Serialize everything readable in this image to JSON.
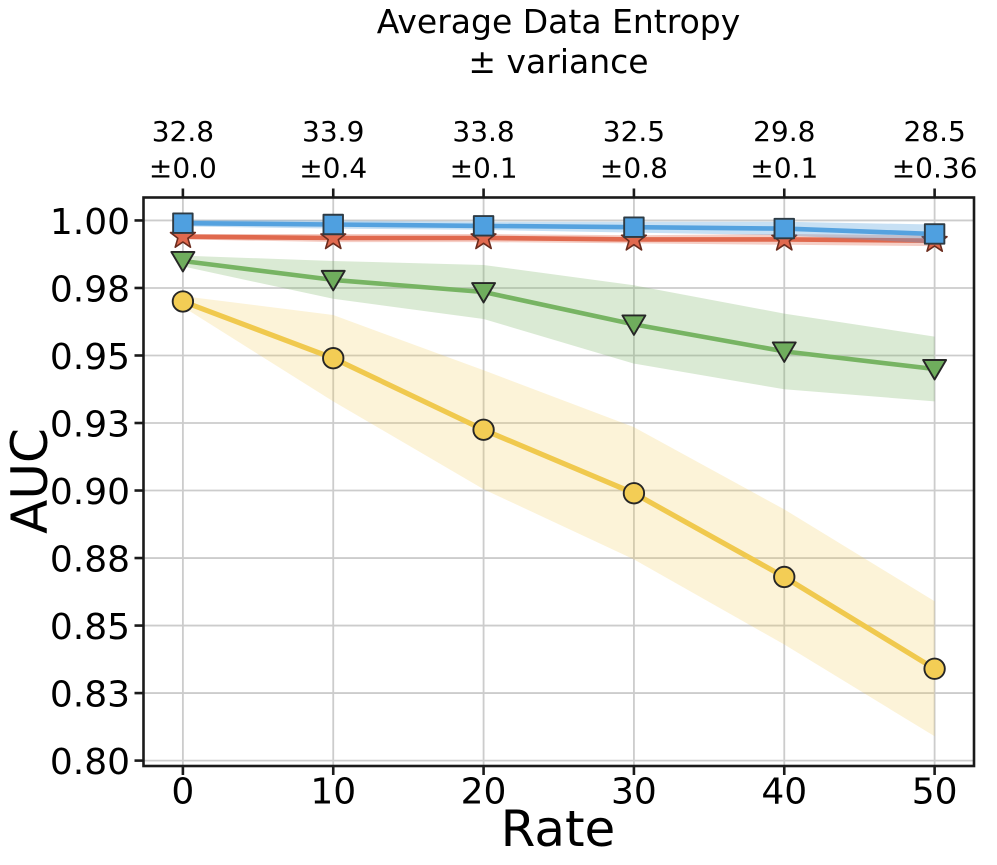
{
  "chart_data": {
    "type": "line",
    "title": "Average Data Entropy ± variance",
    "top_title_lines": [
      "Average Data Entropy",
      "± variance"
    ],
    "xlabel": "Rate",
    "ylabel": "AUC",
    "x": [
      0,
      10,
      20,
      30,
      40,
      50
    ],
    "x_tick_labels": [
      "0",
      "10",
      "20",
      "30",
      "40",
      "50"
    ],
    "y_ticks": [
      1.0,
      0.975,
      0.95,
      0.925,
      0.9,
      0.875,
      0.85,
      0.825,
      0.8
    ],
    "y_tick_labels": [
      "1.00",
      "0.98",
      "0.95",
      "0.93",
      "0.90",
      "0.88",
      "0.85",
      "0.83",
      "0.80"
    ],
    "xlim": [
      -2.62,
      52.62
    ],
    "ylim": [
      0.798,
      1.0085
    ],
    "grid": true,
    "grid_color": "#cccccc",
    "spine_color": "#1a1a1a",
    "legend": "none",
    "top_axis_ticks": [
      {
        "mean": "32.8",
        "variance": "±0.0"
      },
      {
        "mean": "33.9",
        "variance": "±0.4"
      },
      {
        "mean": "33.8",
        "variance": "±0.1"
      },
      {
        "mean": "32.5",
        "variance": "±0.8"
      },
      {
        "mean": "29.8",
        "variance": "±0.1"
      },
      {
        "mean": "28.5",
        "variance": "±0.36"
      }
    ],
    "series": [
      {
        "id": "yellow-circles",
        "marker": "circle",
        "line_color": "#F0C94E",
        "marker_color": "#F3CD55",
        "edge_color": "#262626",
        "band_color": "rgba(240,201,78,0.22)",
        "values": [
          0.97,
          0.949,
          0.9225,
          0.899,
          0.868,
          0.834
        ],
        "band": [
          0.002,
          0.016,
          0.022,
          0.0245,
          0.025,
          0.025
        ]
      },
      {
        "id": "green-triangles",
        "marker": "triangle-down",
        "line_color": "#77B463",
        "marker_color": "#6FAD5D",
        "edge_color": "#262626",
        "band_color": "rgba(122,180,100,0.28)",
        "values": [
          0.985,
          0.978,
          0.9735,
          0.9615,
          0.9515,
          0.945
        ],
        "band": [
          0.002,
          0.007,
          0.01,
          0.0145,
          0.014,
          0.012
        ]
      },
      {
        "id": "red-stars",
        "marker": "star",
        "line_color": "#E0694E",
        "marker_color": "#E0694E",
        "edge_color": "#6B2C1E",
        "band_color": "rgba(224,106,78,0.33)",
        "values": [
          0.994,
          0.9935,
          0.9935,
          0.993,
          0.993,
          0.9925
        ],
        "band": [
          0.001,
          0.0015,
          0.0015,
          0.0015,
          0.002,
          0.002
        ]
      },
      {
        "id": "blue-squares",
        "marker": "square",
        "line_color": "#55A2DF",
        "marker_color": "#4FA0E0",
        "edge_color": "#2E3B44",
        "band_color": "rgba(85,162,223,0.33)",
        "values": [
          0.999,
          0.9985,
          0.998,
          0.9975,
          0.997,
          0.995
        ],
        "band": [
          0.0012,
          0.0015,
          0.0015,
          0.002,
          0.0025,
          0.0035
        ]
      }
    ]
  }
}
